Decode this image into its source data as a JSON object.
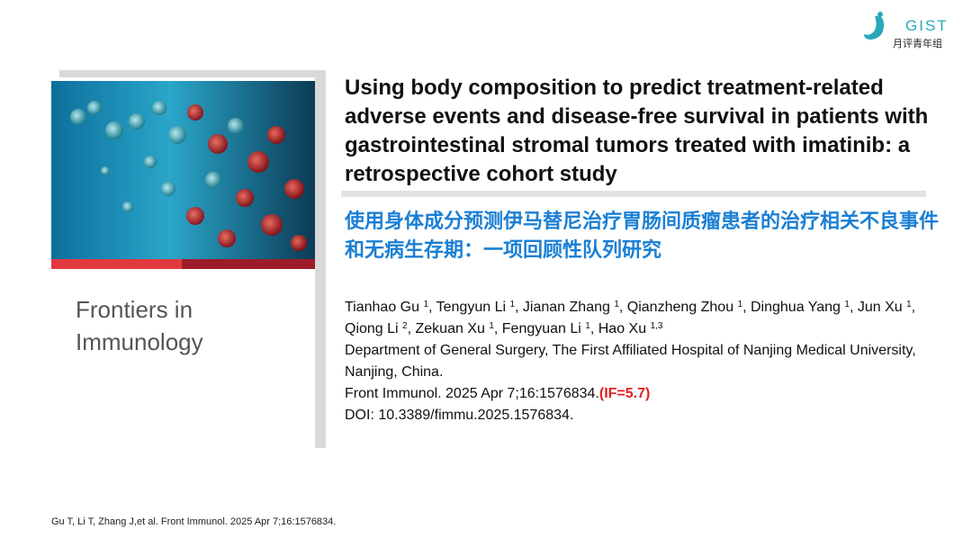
{
  "logo": {
    "brand": "GIST",
    "subtitle": "月评青年组"
  },
  "journal": {
    "lines": [
      "Frontiers in",
      "Immunology"
    ]
  },
  "title_en": "Using body composition to predict treatment-related adverse events and disease-free survival in patients with gastrointestinal stromal tumors treated with imatinib: a retrospective cohort study",
  "title_zh": "使用身体成分预测伊马替尼治疗胃肠间质瘤患者的治疗相关不良事件和无病生存期：一项回顾性队列研究",
  "authors": [
    {
      "text": "Tianhao Gu ",
      "sup": "1"
    },
    {
      "text": ", Tengyun Li ",
      "sup": "1"
    },
    {
      "text": ", Jianan Zhang ",
      "sup": "1"
    },
    {
      "text": ", Qianzheng Zhou ",
      "sup": "1"
    },
    {
      "text": ", Dinghua Yang ",
      "sup": "1"
    },
    {
      "text": ", Jun Xu ",
      "sup": "1"
    },
    {
      "text": ", Qiong Li ",
      "sup": "2"
    },
    {
      "text": ", Zekuan Xu ",
      "sup": "1"
    },
    {
      "text": ", Fengyuan Li ",
      "sup": "1"
    },
    {
      "text": ", Hao Xu ",
      "sup": "1,3"
    }
  ],
  "affiliation": "Department of General Surgery, The First Affiliated Hospital of Nanjing Medical University, Nanjing, China.",
  "citation": {
    "text": "Front Immunol. 2025 Apr 7;16:1576834.",
    "impact": "(IF=5.7)"
  },
  "doi": "DOI: 10.3389/fimmu.2025.1576834.",
  "footer": "Gu T, Li T, Zhang J,et al. Front Immunol. 2025 Apr 7;16:1576834."
}
